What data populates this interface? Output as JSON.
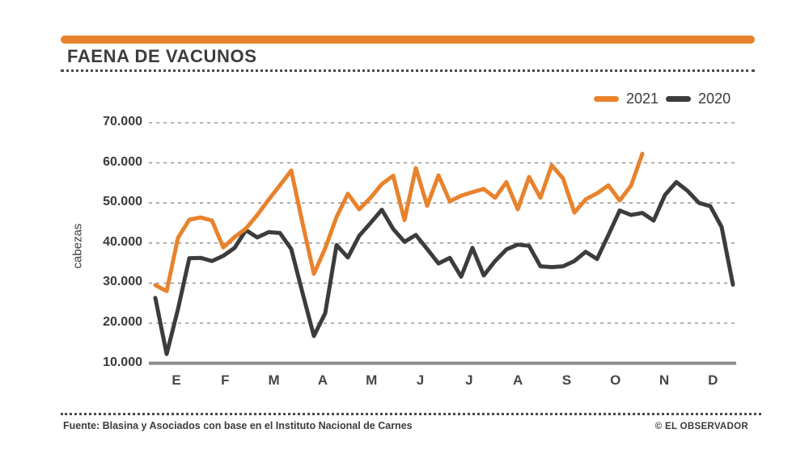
{
  "header": {
    "title": "FAENA DE VACUNOS"
  },
  "legend": [
    {
      "label": "2021",
      "color": "#E8822C"
    },
    {
      "label": "2020",
      "color": "#3C3C3C"
    }
  ],
  "footer": {
    "source": "Fuente: Blasina y Asociados con base en el Instituto Nacional de Carnes",
    "credit": "© EL OBSERVADOR"
  },
  "chart_data": {
    "type": "line",
    "title": "FAENA DE VACUNOS",
    "xlabel": "",
    "ylabel": "cabezas",
    "x_unit": "semana",
    "categories_months": [
      "E",
      "F",
      "M",
      "A",
      "M",
      "J",
      "J",
      "A",
      "S",
      "O",
      "N",
      "D"
    ],
    "y_ticks": [
      "70.000",
      "60.000",
      "50.000",
      "40.000",
      "30.000",
      "20.000",
      "10.000"
    ],
    "ylim": [
      10000,
      70000
    ],
    "grid": "horizontal-dashed",
    "legend_position": "top-right",
    "axis_color": "#8C8C8C",
    "gridline_color": "#9B9B9B",
    "series": [
      {
        "name": "2021",
        "color": "#E8822C",
        "values": [
          29500,
          28000,
          41300,
          45800,
          46400,
          45600,
          38900,
          41500,
          43600,
          47000,
          50800,
          54400,
          58100,
          44900,
          32300,
          38700,
          46500,
          52300,
          48400,
          51300,
          54700,
          56800,
          45700,
          58700,
          49300,
          56900,
          50400,
          51800,
          52700,
          53500,
          51300,
          55200,
          48400,
          56500,
          51300,
          59400,
          56100,
          47600,
          50900,
          52400,
          54400,
          50600,
          54300,
          62300
        ]
      },
      {
        "name": "2020",
        "color": "#3C3C3C",
        "values": [
          26300,
          12300,
          23500,
          36200,
          36300,
          35500,
          36800,
          38800,
          43200,
          41400,
          42700,
          42500,
          38500,
          27500,
          16800,
          22500,
          39500,
          36400,
          41800,
          45000,
          48300,
          43500,
          40300,
          42000,
          38500,
          34900,
          36300,
          31600,
          38800,
          31900,
          35500,
          38400,
          39600,
          39300,
          34200,
          34000,
          34200,
          35500,
          37800,
          36000,
          42000,
          48100,
          47000,
          47500,
          45600,
          52000,
          55200,
          53000,
          50000,
          49200,
          44000,
          29600
        ]
      }
    ]
  }
}
